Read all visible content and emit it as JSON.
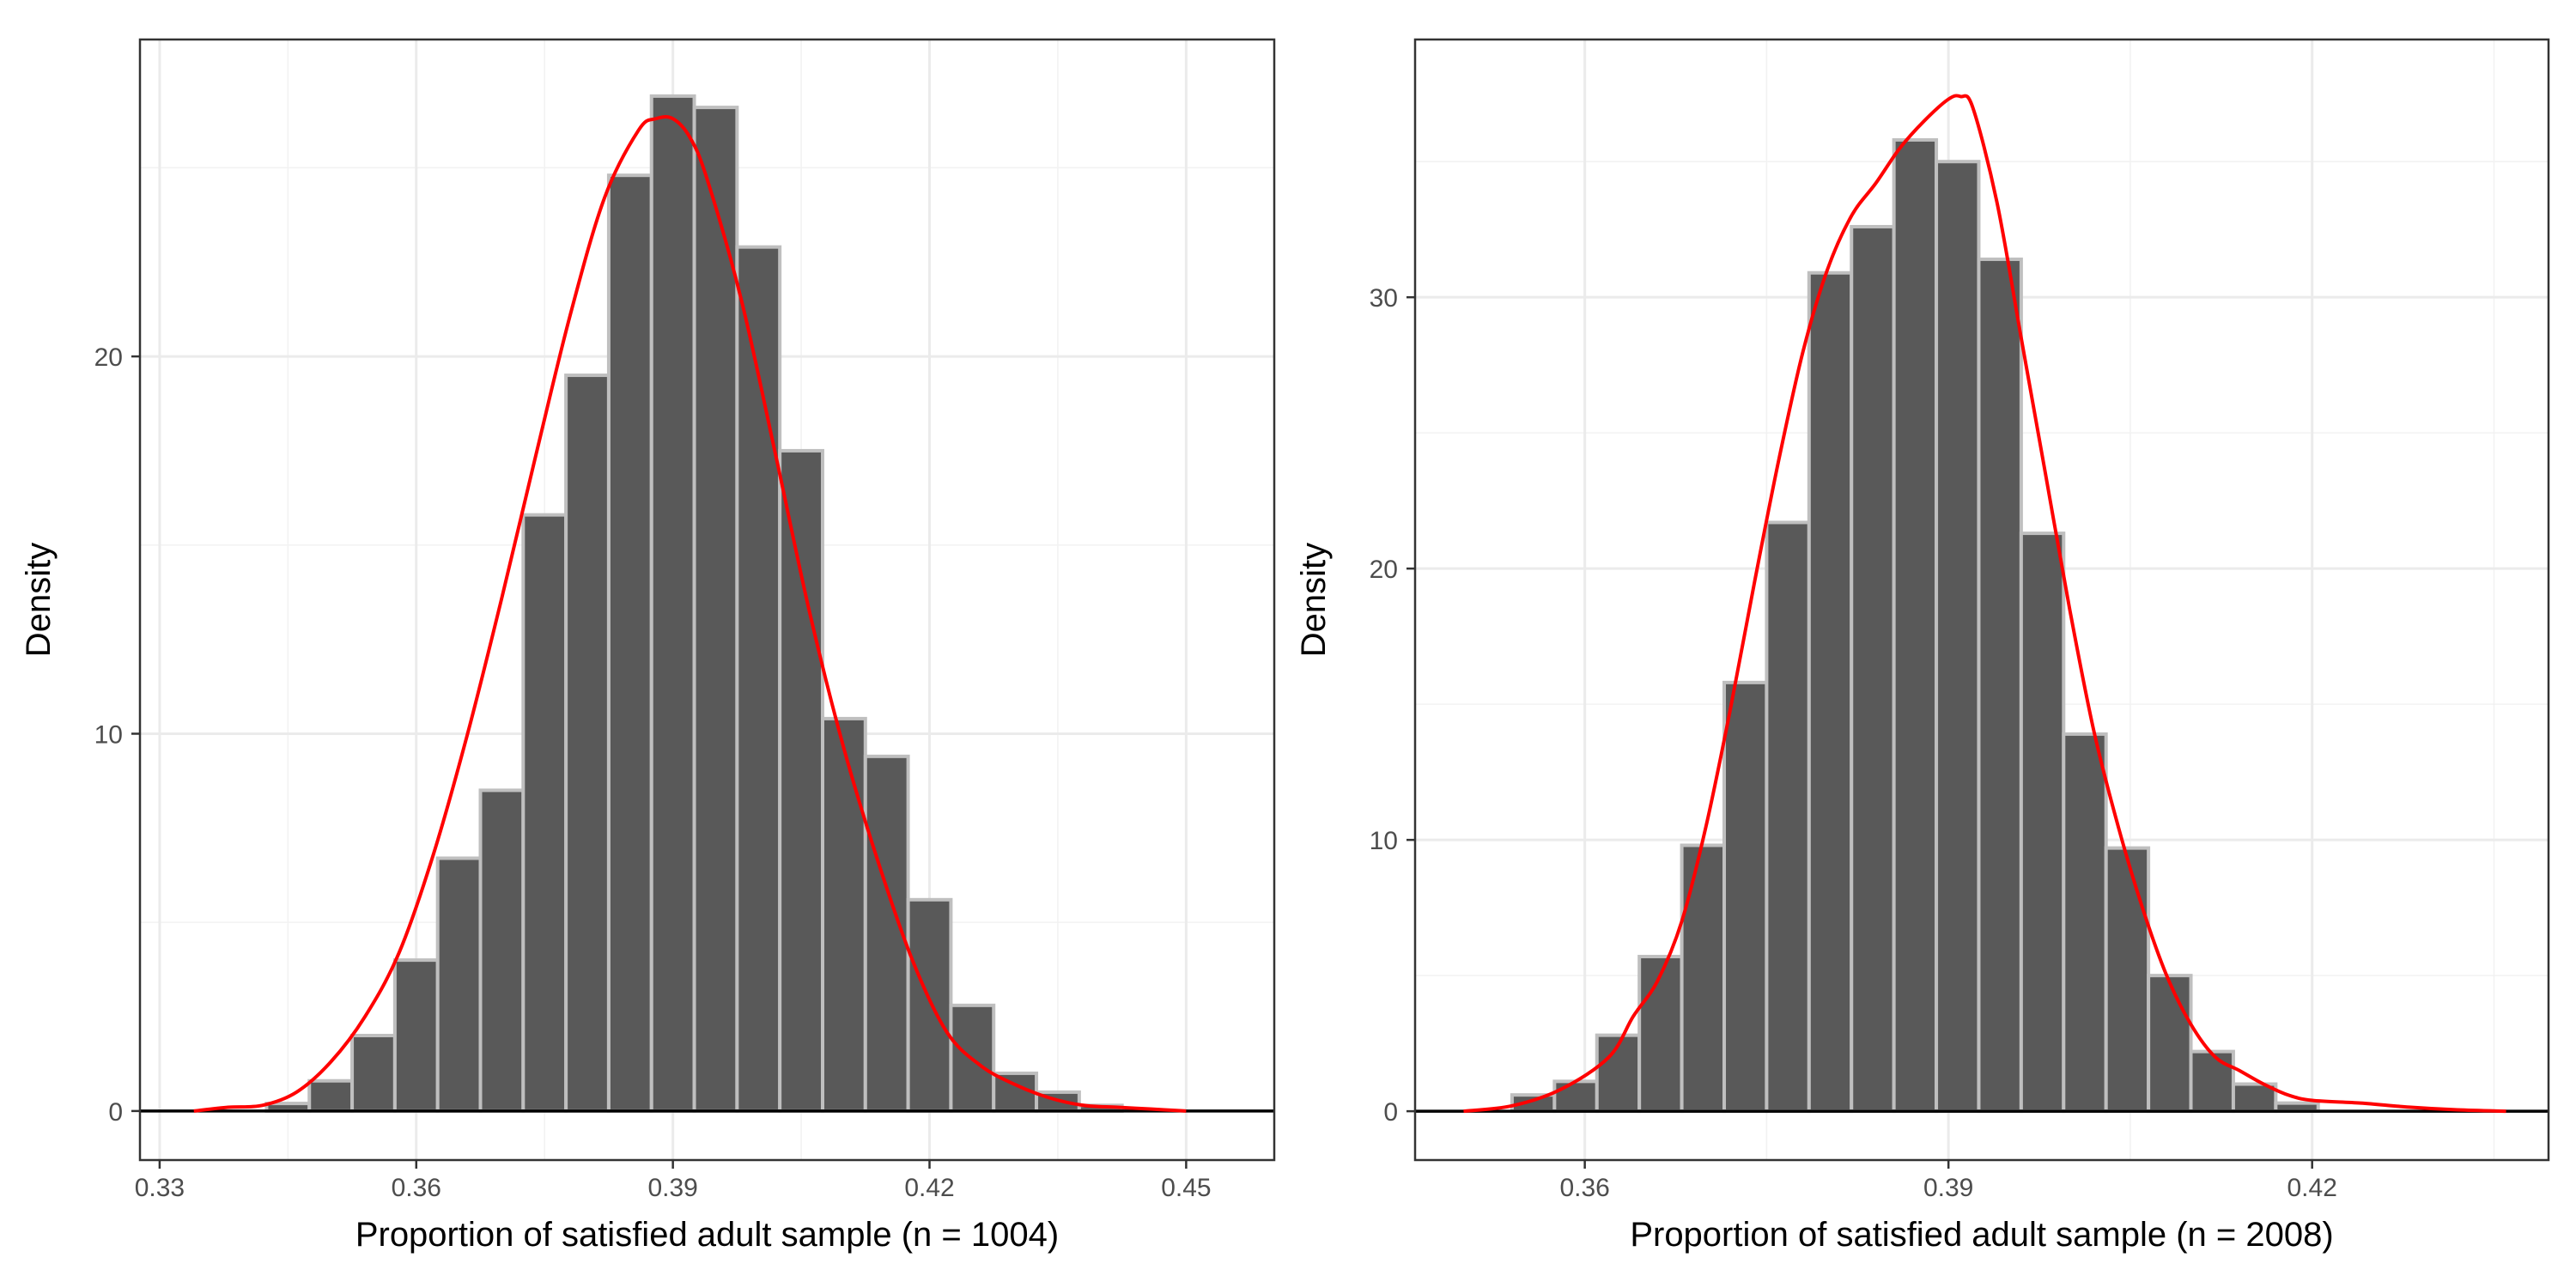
{
  "chart_data": [
    {
      "type": "bar",
      "theme": "bw",
      "xlabel": "Proportion of satisfied adult sample (n = 1004)",
      "ylabel": "Density",
      "xlim": [
        0.3277,
        0.4603
      ],
      "ylim": [
        -1.3,
        28.4
      ],
      "xticks": [
        "0.33",
        "0.36",
        "0.39",
        "0.42",
        "0.45"
      ],
      "yticks": [
        "0",
        "10",
        "20"
      ],
      "grid": true,
      "bin_width": 0.005,
      "bar_fill": "#595959",
      "bar_outline": "#bfbfbf",
      "density_color": "#ff0000",
      "bins": [
        {
          "x0": 0.3425,
          "x1": 0.3475,
          "y": 0.2
        },
        {
          "x0": 0.3475,
          "x1": 0.3525,
          "y": 0.8
        },
        {
          "x0": 0.3525,
          "x1": 0.3575,
          "y": 2.0
        },
        {
          "x0": 0.3575,
          "x1": 0.3625,
          "y": 4.0
        },
        {
          "x0": 0.3625,
          "x1": 0.3675,
          "y": 6.7
        },
        {
          "x0": 0.3675,
          "x1": 0.3725,
          "y": 8.5
        },
        {
          "x0": 0.3725,
          "x1": 0.3775,
          "y": 15.8
        },
        {
          "x0": 0.3775,
          "x1": 0.3825,
          "y": 19.5
        },
        {
          "x0": 0.3825,
          "x1": 0.3875,
          "y": 24.8
        },
        {
          "x0": 0.3875,
          "x1": 0.3925,
          "y": 26.9
        },
        {
          "x0": 0.3925,
          "x1": 0.3975,
          "y": 26.6
        },
        {
          "x0": 0.3975,
          "x1": 0.4025,
          "y": 22.9
        },
        {
          "x0": 0.4025,
          "x1": 0.4075,
          "y": 17.5
        },
        {
          "x0": 0.4075,
          "x1": 0.4125,
          "y": 10.4
        },
        {
          "x0": 0.4125,
          "x1": 0.4175,
          "y": 9.4
        },
        {
          "x0": 0.4175,
          "x1": 0.4225,
          "y": 5.6
        },
        {
          "x0": 0.4225,
          "x1": 0.4275,
          "y": 2.8
        },
        {
          "x0": 0.4275,
          "x1": 0.4325,
          "y": 1.0
        },
        {
          "x0": 0.4325,
          "x1": 0.4375,
          "y": 0.5
        },
        {
          "x0": 0.4375,
          "x1": 0.4425,
          "y": 0.15
        }
      ],
      "density": {
        "x": [
          0.334,
          0.338,
          0.342,
          0.346,
          0.35,
          0.354,
          0.358,
          0.362,
          0.366,
          0.37,
          0.374,
          0.378,
          0.382,
          0.386,
          0.388,
          0.39,
          0.392,
          0.394,
          0.398,
          0.402,
          0.406,
          0.41,
          0.414,
          0.418,
          0.422,
          0.426,
          0.43,
          0.434,
          0.438,
          0.442,
          0.446,
          0.45
        ],
        "y": [
          0.0,
          0.1,
          0.15,
          0.5,
          1.3,
          2.5,
          4.2,
          6.8,
          10.0,
          13.6,
          17.4,
          21.1,
          24.2,
          26.0,
          26.3,
          26.3,
          25.8,
          24.7,
          21.5,
          17.4,
          13.2,
          9.6,
          6.6,
          4.0,
          2.1,
          1.2,
          0.7,
          0.35,
          0.15,
          0.1,
          0.05,
          0.0
        ]
      }
    },
    {
      "type": "bar",
      "theme": "bw",
      "xlabel": "Proportion of satisfied adult sample (n = 2008)",
      "ylabel": "Density",
      "xlim": [
        0.346,
        0.4395
      ],
      "ylim": [
        -1.8,
        39.5
      ],
      "xticks": [
        "0.36",
        "0.39",
        "0.42"
      ],
      "yticks": [
        "0",
        "10",
        "20",
        "30"
      ],
      "grid": true,
      "bin_width": 0.0035,
      "bar_fill": "#595959",
      "bar_outline": "#bfbfbf",
      "density_color": "#ff0000",
      "bins": [
        {
          "x0": 0.354,
          "x1": 0.3575,
          "y": 0.6
        },
        {
          "x0": 0.3575,
          "x1": 0.361,
          "y": 1.1
        },
        {
          "x0": 0.361,
          "x1": 0.3645,
          "y": 2.8
        },
        {
          "x0": 0.3645,
          "x1": 0.368,
          "y": 5.7
        },
        {
          "x0": 0.368,
          "x1": 0.3715,
          "y": 9.8
        },
        {
          "x0": 0.3715,
          "x1": 0.375,
          "y": 15.8
        },
        {
          "x0": 0.375,
          "x1": 0.3785,
          "y": 21.7
        },
        {
          "x0": 0.3785,
          "x1": 0.382,
          "y": 30.9
        },
        {
          "x0": 0.382,
          "x1": 0.3855,
          "y": 32.6
        },
        {
          "x0": 0.3855,
          "x1": 0.389,
          "y": 35.8
        },
        {
          "x0": 0.389,
          "x1": 0.3925,
          "y": 35.0
        },
        {
          "x0": 0.3925,
          "x1": 0.396,
          "y": 31.4
        },
        {
          "x0": 0.396,
          "x1": 0.3995,
          "y": 21.3
        },
        {
          "x0": 0.3995,
          "x1": 0.403,
          "y": 13.9
        },
        {
          "x0": 0.403,
          "x1": 0.4065,
          "y": 9.7
        },
        {
          "x0": 0.4065,
          "x1": 0.41,
          "y": 5.0
        },
        {
          "x0": 0.41,
          "x1": 0.4135,
          "y": 2.2
        },
        {
          "x0": 0.4135,
          "x1": 0.417,
          "y": 1.0
        },
        {
          "x0": 0.417,
          "x1": 0.4205,
          "y": 0.3
        }
      ],
      "density": {
        "x": [
          0.35,
          0.354,
          0.358,
          0.362,
          0.364,
          0.366,
          0.368,
          0.37,
          0.372,
          0.374,
          0.376,
          0.378,
          0.38,
          0.382,
          0.384,
          0.386,
          0.388,
          0.39,
          0.391,
          0.392,
          0.394,
          0.396,
          0.398,
          0.4,
          0.402,
          0.404,
          0.406,
          0.408,
          0.41,
          0.412,
          0.414,
          0.416,
          0.418,
          0.42,
          0.424,
          0.428,
          0.432,
          0.436
        ],
        "y": [
          0.0,
          0.2,
          0.8,
          2.0,
          3.5,
          4.8,
          7.0,
          10.5,
          14.8,
          19.5,
          24.0,
          28.0,
          31.0,
          33.0,
          34.2,
          35.5,
          36.5,
          37.3,
          37.4,
          37.0,
          33.5,
          28.5,
          23.5,
          18.5,
          14.0,
          10.5,
          7.5,
          5.0,
          3.2,
          2.0,
          1.5,
          1.0,
          0.6,
          0.4,
          0.3,
          0.15,
          0.05,
          0.0
        ]
      }
    }
  ]
}
